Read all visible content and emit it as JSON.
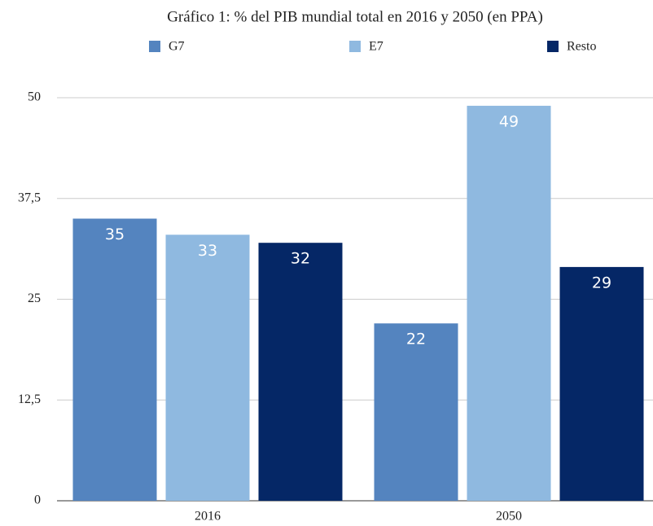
{
  "chart_data": {
    "type": "bar",
    "title": "Gráfico 1: % del PIB mundial total en 2016 y 2050 (en PPA)",
    "categories": [
      "2016",
      "2050"
    ],
    "series": [
      {
        "name": "G7",
        "color": "#5484bf",
        "values": [
          35,
          22
        ]
      },
      {
        "name": "E7",
        "color": "#8fb9e0",
        "values": [
          33,
          49
        ]
      },
      {
        "name": "Resto",
        "color": "#052766",
        "values": [
          32,
          29
        ]
      }
    ],
    "ylim": [
      0,
      50
    ],
    "yticks": [
      0,
      {
        "value": 12.5,
        "label": "12,5"
      },
      25,
      {
        "value": 37.5,
        "label": "37,5"
      },
      50
    ],
    "grid": true,
    "legend": "top",
    "data_labels": true
  }
}
